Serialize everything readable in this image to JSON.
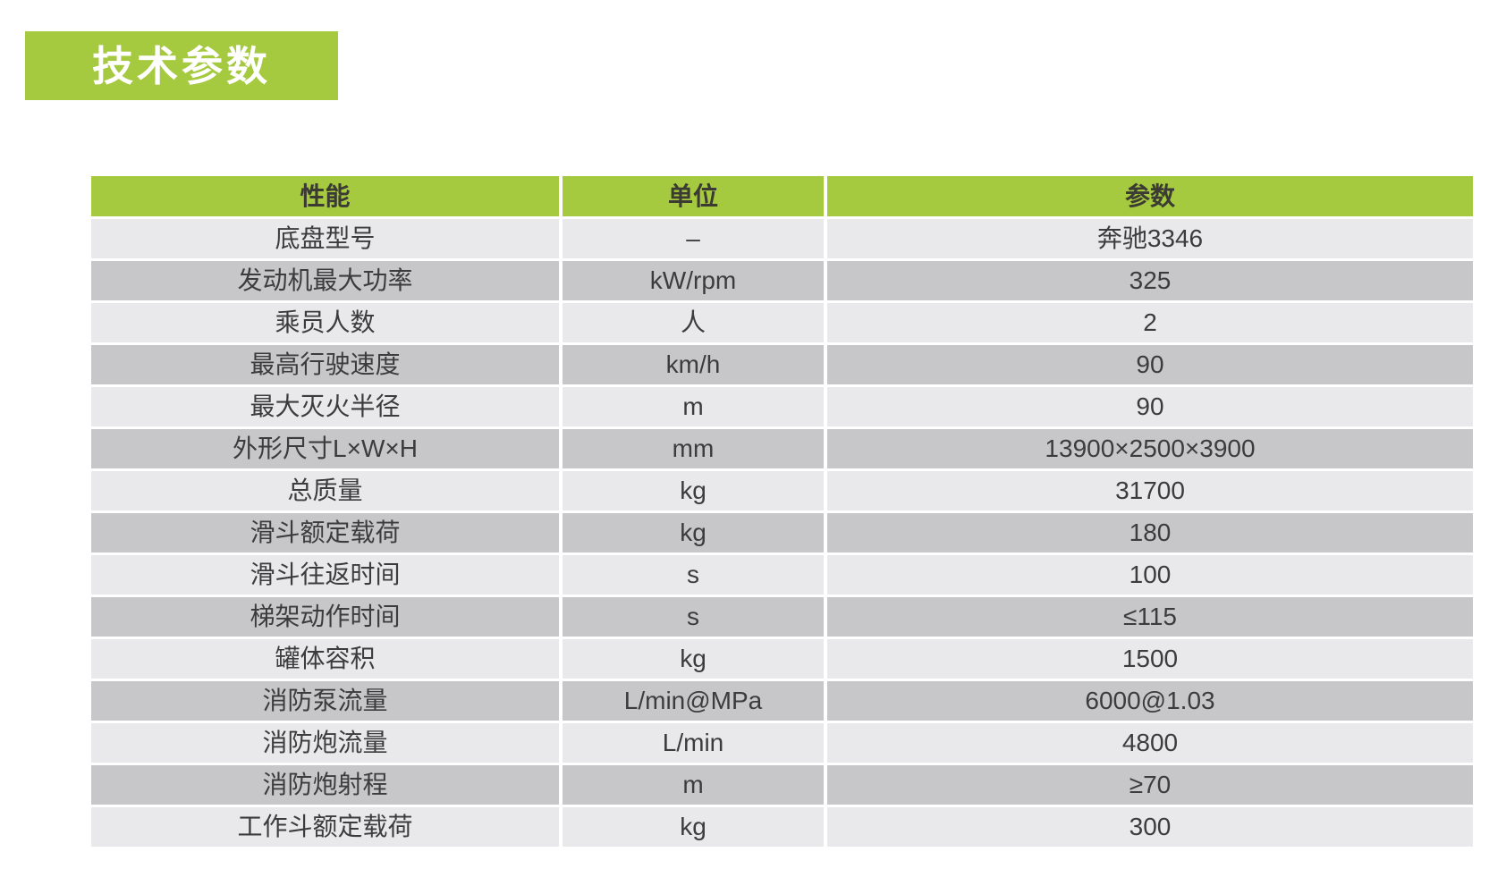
{
  "page": {
    "title": "技术参数"
  },
  "colors": {
    "accent_green": "#a5c93f",
    "row_light": "#e9e9eb",
    "row_dark": "#c7c7c9",
    "text": "#3c3c3e"
  },
  "table": {
    "headers": {
      "performance": "性能",
      "unit": "单位",
      "value": "参数"
    },
    "rows": [
      {
        "name": "底盘型号",
        "unit": "–",
        "value": "奔驰3346"
      },
      {
        "name": "发动机最大功率",
        "unit": "kW/rpm",
        "value": "325"
      },
      {
        "name": "乘员人数",
        "unit": "人",
        "value": "2"
      },
      {
        "name": "最高行驶速度",
        "unit": "km/h",
        "value": "90"
      },
      {
        "name": "最大灭火半径",
        "unit": "m",
        "value": "90"
      },
      {
        "name": "外形尺寸L×W×H",
        "unit": "mm",
        "value": "13900×2500×3900"
      },
      {
        "name": "总质量",
        "unit": "kg",
        "value": "31700"
      },
      {
        "name": "滑斗额定载荷",
        "unit": "kg",
        "value": "180"
      },
      {
        "name": "滑斗往返时间",
        "unit": "s",
        "value": "100"
      },
      {
        "name": "梯架动作时间",
        "unit": "s",
        "value": "≤115"
      },
      {
        "name": "罐体容积",
        "unit": "kg",
        "value": "1500"
      },
      {
        "name": "消防泵流量",
        "unit": "L/min@MPa",
        "value": "6000@1.03"
      },
      {
        "name": "消防炮流量",
        "unit": "L/min",
        "value": "4800"
      },
      {
        "name": "消防炮射程",
        "unit": "m",
        "value": "≥70"
      },
      {
        "name": "工作斗额定载荷",
        "unit": "kg",
        "value": "300"
      }
    ]
  }
}
